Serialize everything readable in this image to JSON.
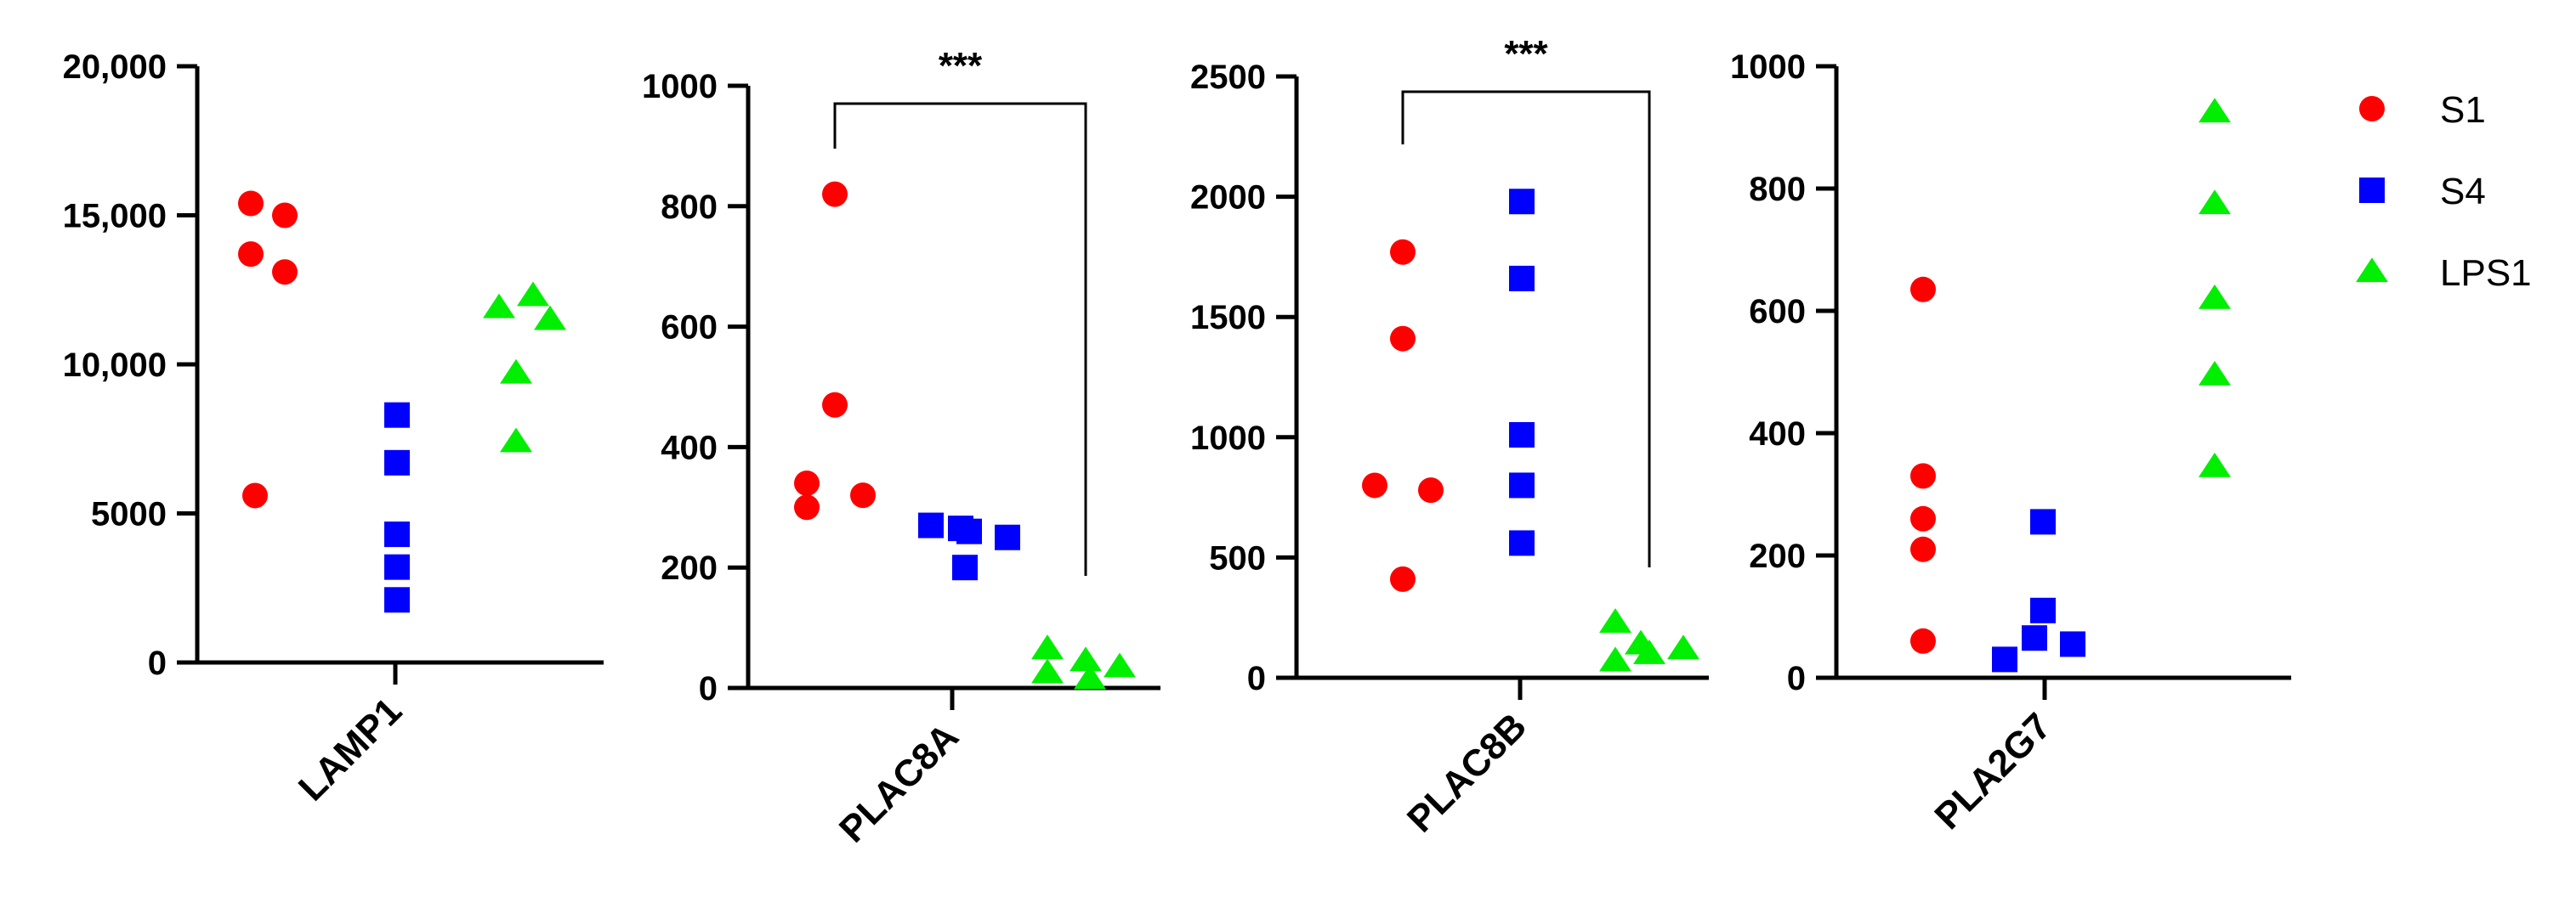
{
  "colors": {
    "S1": "#ff0000",
    "S4": "#0000ff",
    "LPS1": "#00ee00",
    "axis": "#000000"
  },
  "legend": [
    {
      "name": "S1",
      "marker": "circle"
    },
    {
      "name": "S4",
      "marker": "square"
    },
    {
      "name": "LPS1",
      "marker": "triangle"
    }
  ],
  "chart_data": [
    {
      "type": "scatter",
      "category": "LAMP1",
      "ylim": [
        0,
        20000
      ],
      "yticks": [
        0,
        5000,
        10000,
        15000,
        20000
      ],
      "yticklabels": [
        "0",
        "5000",
        "10,000",
        "15,000",
        "20,000"
      ],
      "significance": null,
      "series": [
        {
          "name": "S1",
          "values": [
            15400,
            15000,
            13700,
            13100,
            5600
          ]
        },
        {
          "name": "S4",
          "values": [
            8300,
            6700,
            4300,
            3200,
            2100
          ]
        },
        {
          "name": "LPS1",
          "values": [
            12300,
            11900,
            11500,
            9700,
            7400
          ]
        }
      ]
    },
    {
      "type": "scatter",
      "category": "PLAC8A",
      "ylim": [
        0,
        1000
      ],
      "yticks": [
        0,
        200,
        400,
        600,
        800,
        1000
      ],
      "yticklabels": [
        "0",
        "200",
        "400",
        "600",
        "800",
        "1000"
      ],
      "significance": {
        "label": "***",
        "from": "S1",
        "to": "LPS1"
      },
      "series": [
        {
          "name": "S1",
          "values": [
            820,
            470,
            340,
            320,
            300
          ]
        },
        {
          "name": "S4",
          "values": [
            270,
            265,
            260,
            250,
            200
          ]
        },
        {
          "name": "LPS1",
          "values": [
            65,
            45,
            35,
            25,
            15
          ]
        }
      ]
    },
    {
      "type": "scatter",
      "category": "PLAC8B",
      "ylim": [
        0,
        2500
      ],
      "yticks": [
        0,
        500,
        1000,
        1500,
        2000,
        2500
      ],
      "yticklabels": [
        "0",
        "500",
        "1000",
        "1500",
        "2000",
        "2500"
      ],
      "significance": {
        "label": "***",
        "from": "S1",
        "to": "LPS1"
      },
      "series": [
        {
          "name": "S1",
          "values": [
            1770,
            1410,
            800,
            780,
            410
          ]
        },
        {
          "name": "S4",
          "values": [
            1980,
            1660,
            1010,
            800,
            560
          ]
        },
        {
          "name": "LPS1",
          "values": [
            230,
            140,
            120,
            100,
            70
          ]
        }
      ]
    },
    {
      "type": "scatter",
      "category": "PLA2G7",
      "ylim": [
        0,
        1000
      ],
      "yticks": [
        0,
        200,
        400,
        600,
        800,
        1000
      ],
      "yticklabels": [
        "0",
        "200",
        "400",
        "600",
        "800",
        "1000"
      ],
      "significance": null,
      "series": [
        {
          "name": "S1",
          "values": [
            635,
            330,
            260,
            210,
            60
          ]
        },
        {
          "name": "S4",
          "values": [
            255,
            110,
            65,
            55,
            30
          ]
        },
        {
          "name": "LPS1",
          "values": [
            925,
            775,
            620,
            495,
            345
          ]
        }
      ]
    }
  ]
}
